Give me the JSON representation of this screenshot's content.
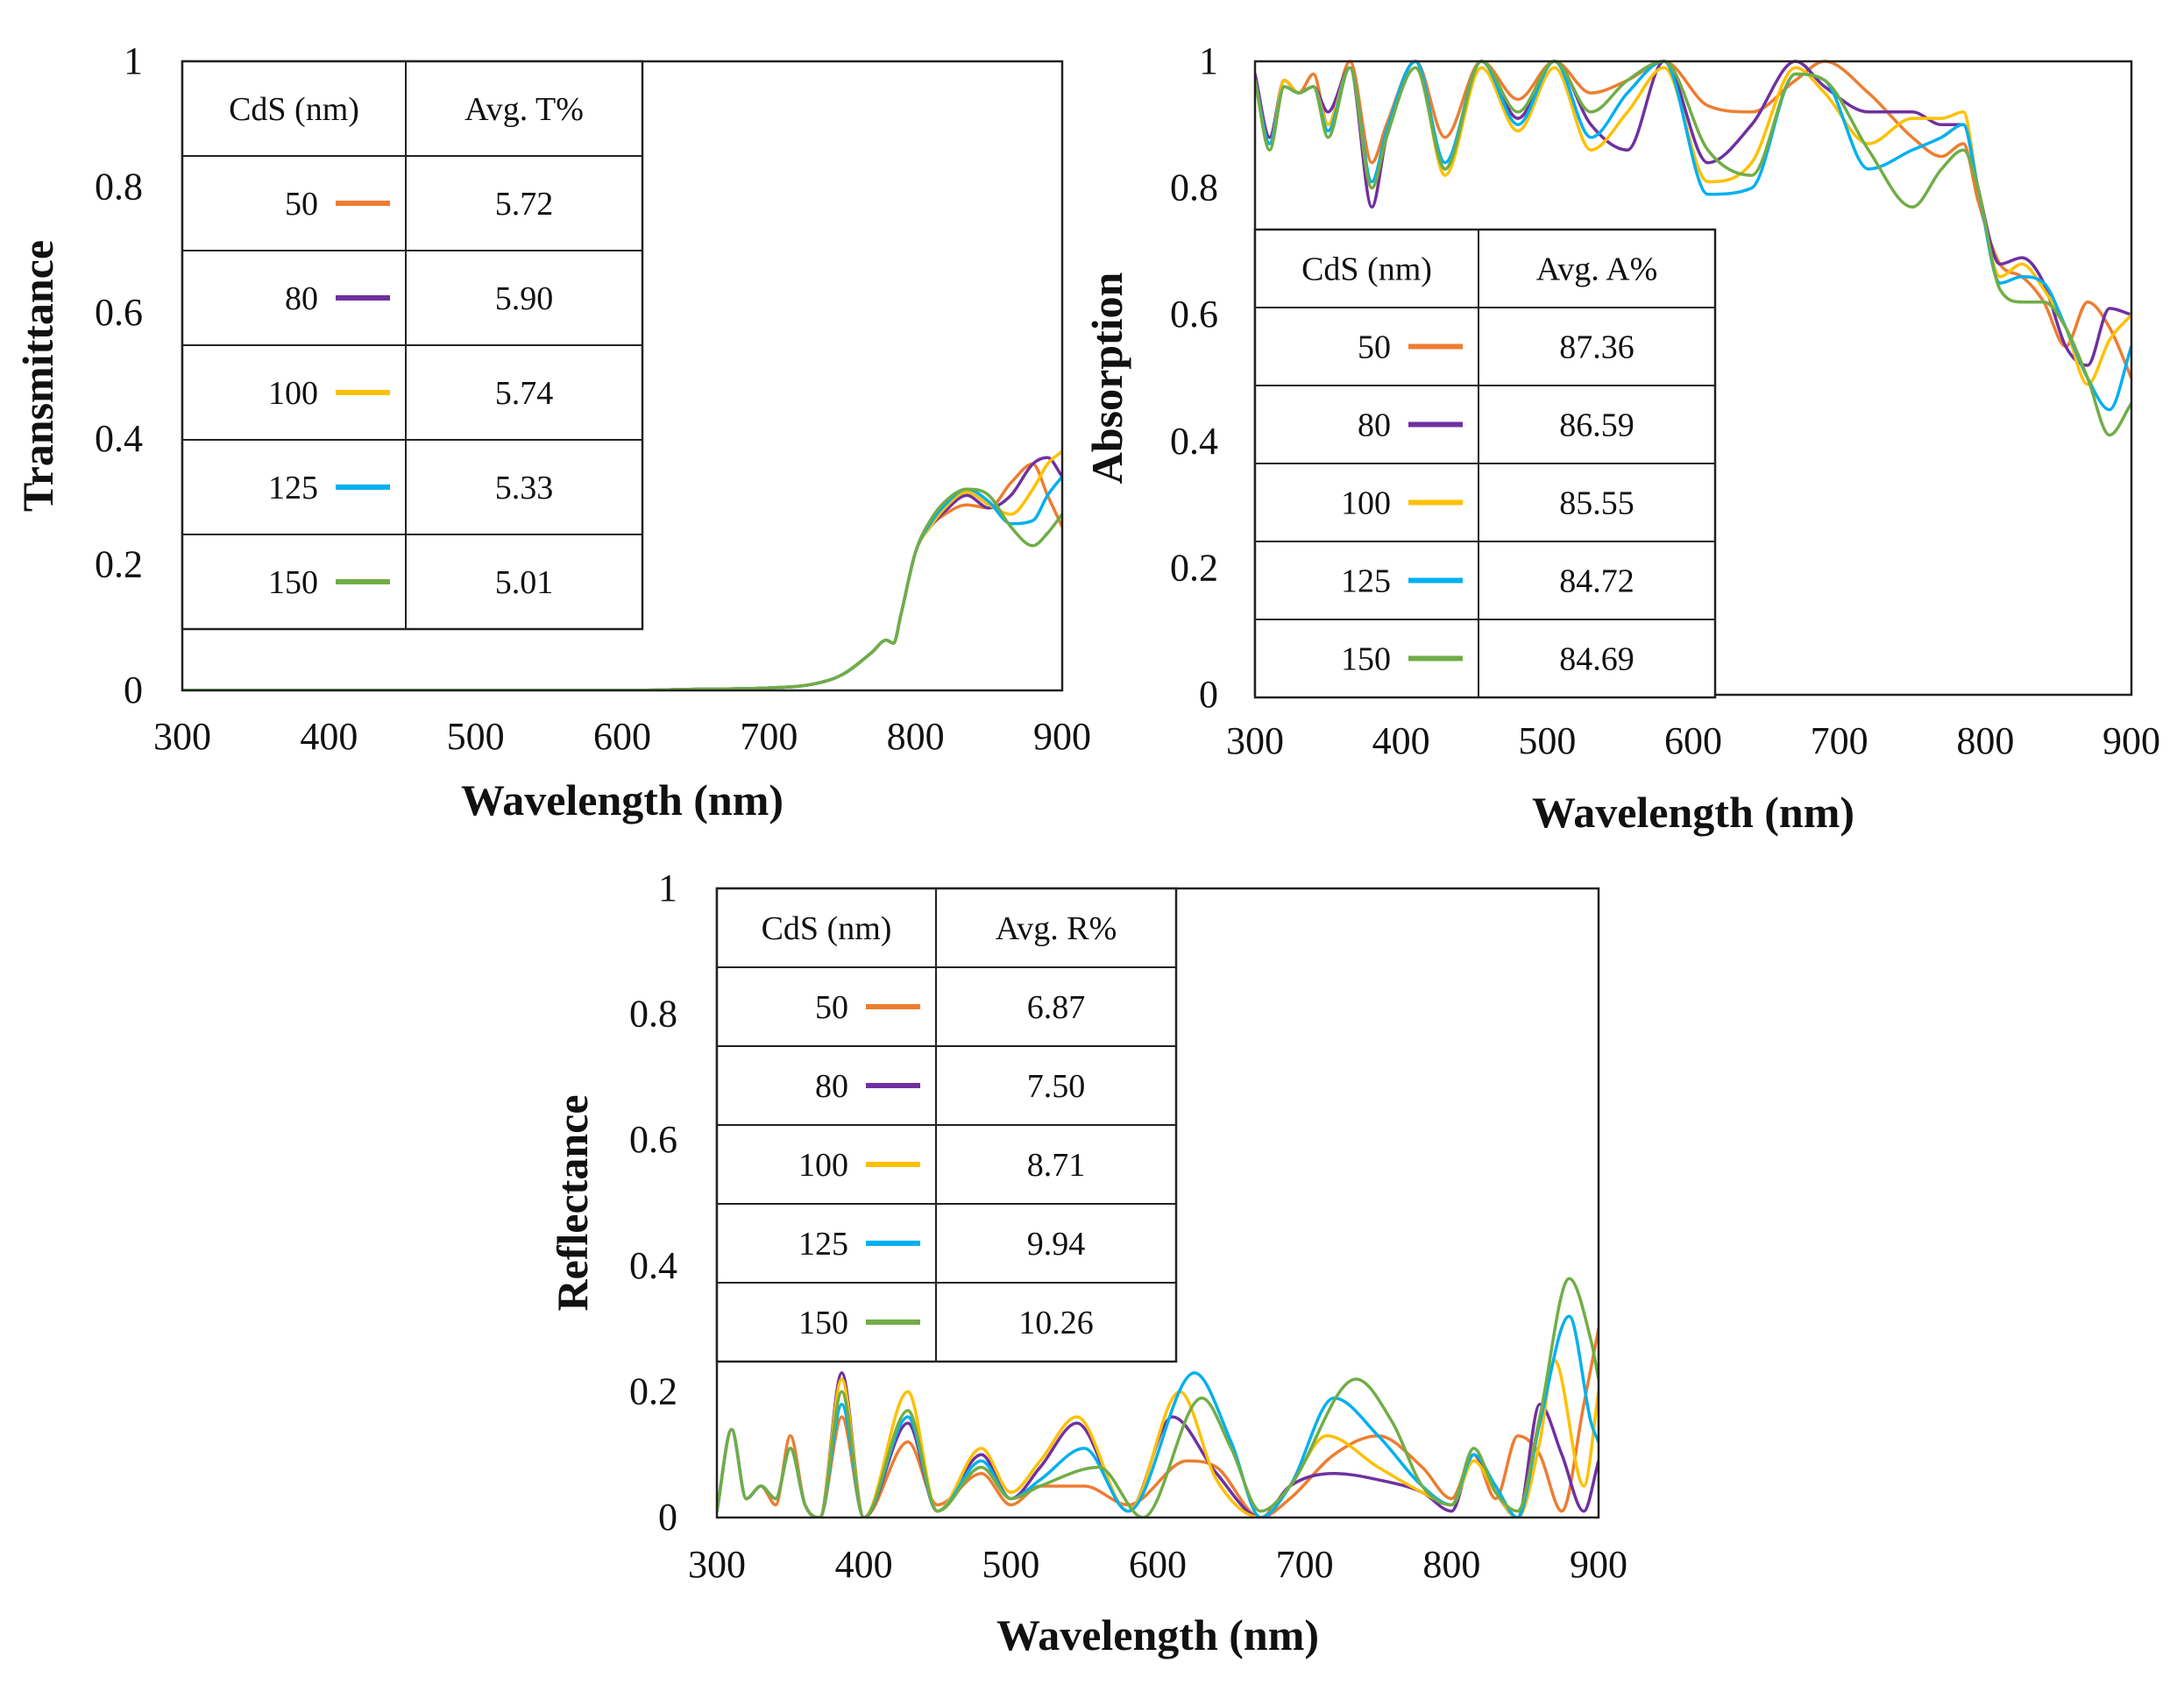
{
  "colors": {
    "50": "#ED7D31",
    "80": "#7030A0",
    "100": "#FFC000",
    "125": "#00B0F0",
    "150": "#70AD47"
  },
  "chart_data": [
    {
      "id": "transmittance",
      "type": "line",
      "xlabel": "Wavelength (nm)",
      "ylabel": "Transmittance",
      "xlim": [
        300,
        900
      ],
      "ylim": [
        0,
        1
      ],
      "xticks": [
        "300",
        "400",
        "500",
        "600",
        "700",
        "800",
        "900"
      ],
      "yticks": [
        "0",
        "0.2",
        "0.4",
        "0.6",
        "0.8",
        "1"
      ],
      "legend_table": {
        "headers": [
          "CdS (nm)",
          "Avg. T%"
        ],
        "rows": [
          {
            "label": "50",
            "value": "5.72"
          },
          {
            "label": "80",
            "value": "5.90"
          },
          {
            "label": "100",
            "value": "5.74"
          },
          {
            "label": "125",
            "value": "5.33"
          },
          {
            "label": "150",
            "value": "5.01"
          }
        ]
      },
      "series": [
        {
          "name": "50",
          "x": [
            300,
            600,
            650,
            700,
            730,
            750,
            770,
            780,
            785,
            790,
            800,
            810,
            820,
            835,
            850,
            865,
            880,
            890,
            900
          ],
          "y": [
            0,
            0,
            0.002,
            0.004,
            0.01,
            0.025,
            0.06,
            0.08,
            0.075,
            0.12,
            0.22,
            0.26,
            0.28,
            0.295,
            0.29,
            0.33,
            0.36,
            0.31,
            0.26
          ]
        },
        {
          "name": "80",
          "x": [
            300,
            600,
            650,
            700,
            730,
            750,
            770,
            780,
            785,
            790,
            800,
            810,
            820,
            835,
            850,
            865,
            880,
            890,
            900
          ],
          "y": [
            0,
            0,
            0.002,
            0.004,
            0.01,
            0.025,
            0.06,
            0.08,
            0.075,
            0.12,
            0.22,
            0.26,
            0.285,
            0.31,
            0.29,
            0.31,
            0.36,
            0.37,
            0.34
          ]
        },
        {
          "name": "100",
          "x": [
            300,
            600,
            650,
            700,
            730,
            750,
            770,
            780,
            785,
            790,
            800,
            810,
            820,
            835,
            850,
            865,
            880,
            890,
            900
          ],
          "y": [
            0,
            0,
            0.002,
            0.004,
            0.01,
            0.025,
            0.06,
            0.08,
            0.075,
            0.12,
            0.22,
            0.26,
            0.29,
            0.315,
            0.295,
            0.28,
            0.32,
            0.36,
            0.38
          ]
        },
        {
          "name": "125",
          "x": [
            300,
            600,
            650,
            700,
            730,
            750,
            770,
            780,
            785,
            790,
            800,
            810,
            820,
            835,
            850,
            865,
            880,
            890,
            900
          ],
          "y": [
            0,
            0,
            0.002,
            0.004,
            0.01,
            0.025,
            0.06,
            0.08,
            0.075,
            0.12,
            0.22,
            0.265,
            0.295,
            0.32,
            0.3,
            0.265,
            0.27,
            0.31,
            0.34
          ]
        },
        {
          "name": "150",
          "x": [
            300,
            600,
            650,
            700,
            730,
            750,
            770,
            780,
            785,
            790,
            800,
            810,
            820,
            835,
            850,
            865,
            880,
            890,
            900
          ],
          "y": [
            0,
            0,
            0.002,
            0.004,
            0.01,
            0.025,
            0.06,
            0.08,
            0.075,
            0.12,
            0.22,
            0.27,
            0.3,
            0.32,
            0.31,
            0.26,
            0.23,
            0.25,
            0.28
          ]
        }
      ]
    },
    {
      "id": "absorption",
      "type": "line",
      "xlabel": "Wavelength (nm)",
      "ylabel": "Absorption",
      "xlim": [
        300,
        900
      ],
      "ylim": [
        0,
        1
      ],
      "xticks": [
        "300",
        "400",
        "500",
        "600",
        "700",
        "800",
        "900"
      ],
      "yticks": [
        "0",
        "0.2",
        "0.4",
        "0.6",
        "0.8",
        "1"
      ],
      "legend_table": {
        "headers": [
          "CdS (nm)",
          "Avg. A%"
        ],
        "rows": [
          {
            "label": "50",
            "value": "87.36"
          },
          {
            "label": "80",
            "value": "86.59"
          },
          {
            "label": "100",
            "value": "85.55"
          },
          {
            "label": "125",
            "value": "84.72"
          },
          {
            "label": "150",
            "value": "84.69"
          }
        ]
      },
      "series": [
        {
          "name": "50",
          "x": [
            300,
            310,
            320,
            330,
            340,
            350,
            365,
            380,
            390,
            410,
            430,
            455,
            480,
            505,
            530,
            555,
            580,
            610,
            640,
            670,
            690,
            720,
            750,
            770,
            785,
            795,
            810,
            825,
            840,
            855,
            870,
            885,
            900
          ],
          "y": [
            0.98,
            0.88,
            0.97,
            0.95,
            0.98,
            0.9,
            1.0,
            0.84,
            0.9,
            1.0,
            0.88,
            1.0,
            0.94,
            1.0,
            0.95,
            0.97,
            1.0,
            0.93,
            0.92,
            0.97,
            1.0,
            0.95,
            0.88,
            0.85,
            0.87,
            0.78,
            0.68,
            0.66,
            0.62,
            0.55,
            0.62,
            0.58,
            0.5
          ]
        },
        {
          "name": "80",
          "x": [
            300,
            310,
            320,
            330,
            340,
            350,
            365,
            380,
            390,
            410,
            430,
            455,
            480,
            505,
            530,
            555,
            580,
            610,
            640,
            670,
            690,
            720,
            750,
            770,
            785,
            795,
            810,
            825,
            840,
            855,
            870,
            885,
            900
          ],
          "y": [
            0.98,
            0.88,
            0.97,
            0.95,
            0.96,
            0.92,
            0.99,
            0.77,
            0.88,
            1.0,
            0.83,
            1.0,
            0.91,
            1.0,
            0.9,
            0.86,
            1.0,
            0.84,
            0.9,
            1.0,
            0.96,
            0.92,
            0.92,
            0.9,
            0.9,
            0.8,
            0.68,
            0.69,
            0.65,
            0.55,
            0.52,
            0.61,
            0.6
          ]
        },
        {
          "name": "100",
          "x": [
            300,
            310,
            320,
            330,
            340,
            350,
            365,
            380,
            390,
            410,
            430,
            455,
            480,
            505,
            530,
            555,
            580,
            610,
            640,
            670,
            690,
            720,
            750,
            770,
            785,
            795,
            810,
            825,
            840,
            855,
            870,
            885,
            900
          ],
          "y": [
            0.97,
            0.87,
            0.97,
            0.95,
            0.96,
            0.9,
            0.99,
            0.8,
            0.88,
            1.0,
            0.82,
            0.99,
            0.89,
            0.99,
            0.86,
            0.92,
            0.99,
            0.81,
            0.84,
            0.99,
            0.95,
            0.87,
            0.91,
            0.91,
            0.92,
            0.8,
            0.66,
            0.68,
            0.64,
            0.58,
            0.49,
            0.56,
            0.6
          ]
        },
        {
          "name": "125",
          "x": [
            300,
            310,
            320,
            330,
            340,
            350,
            365,
            380,
            390,
            410,
            430,
            455,
            480,
            505,
            530,
            555,
            580,
            610,
            640,
            670,
            690,
            720,
            750,
            770,
            785,
            795,
            810,
            825,
            840,
            855,
            870,
            885,
            900
          ],
          "y": [
            0.97,
            0.87,
            0.96,
            0.95,
            0.96,
            0.89,
            0.99,
            0.81,
            0.89,
            1.0,
            0.84,
            1.0,
            0.9,
            1.0,
            0.88,
            0.95,
            1.0,
            0.79,
            0.8,
            0.98,
            0.97,
            0.83,
            0.86,
            0.88,
            0.9,
            0.8,
            0.65,
            0.66,
            0.65,
            0.58,
            0.5,
            0.45,
            0.55
          ]
        },
        {
          "name": "150",
          "x": [
            300,
            310,
            320,
            330,
            340,
            350,
            365,
            380,
            390,
            410,
            430,
            455,
            480,
            505,
            530,
            555,
            580,
            610,
            640,
            670,
            690,
            720,
            750,
            770,
            785,
            795,
            810,
            825,
            840,
            855,
            870,
            885,
            900
          ],
          "y": [
            0.97,
            0.86,
            0.96,
            0.95,
            0.96,
            0.88,
            0.99,
            0.8,
            0.88,
            0.99,
            0.83,
            1.0,
            0.92,
            1.0,
            0.92,
            0.97,
            1.0,
            0.86,
            0.82,
            0.98,
            0.97,
            0.86,
            0.77,
            0.83,
            0.86,
            0.8,
            0.64,
            0.62,
            0.62,
            0.58,
            0.5,
            0.41,
            0.46
          ]
        }
      ]
    },
    {
      "id": "reflectance",
      "type": "line",
      "xlabel": "Wavelength (nm)",
      "ylabel": "Reflectance",
      "xlim": [
        300,
        900
      ],
      "ylim": [
        0,
        1
      ],
      "xticks": [
        "300",
        "400",
        "500",
        "600",
        "700",
        "800",
        "900"
      ],
      "yticks": [
        "0",
        "0.2",
        "0.4",
        "0.6",
        "0.8",
        "1"
      ],
      "legend_table": {
        "headers": [
          "CdS (nm)",
          "Avg. R%"
        ],
        "rows": [
          {
            "label": "50",
            "value": "6.87"
          },
          {
            "label": "80",
            "value": "7.50"
          },
          {
            "label": "100",
            "value": "8.71"
          },
          {
            "label": "125",
            "value": "9.94"
          },
          {
            "label": "150",
            "value": "10.26"
          }
        ]
      },
      "series": [
        {
          "name": "50",
          "x": [
            300,
            310,
            320,
            330,
            340,
            350,
            360,
            370,
            385,
            400,
            430,
            450,
            480,
            500,
            520,
            550,
            580,
            620,
            640,
            670,
            690,
            720,
            750,
            780,
            800,
            815,
            830,
            845,
            860,
            875,
            890,
            900
          ],
          "y": [
            0.01,
            0.14,
            0.03,
            0.05,
            0.02,
            0.13,
            0.02,
            0.0,
            0.16,
            0.0,
            0.12,
            0.02,
            0.07,
            0.02,
            0.05,
            0.05,
            0.02,
            0.09,
            0.08,
            0.0,
            0.03,
            0.1,
            0.13,
            0.08,
            0.03,
            0.1,
            0.03,
            0.13,
            0.1,
            0.01,
            0.18,
            0.3
          ]
        },
        {
          "name": "80",
          "x": [
            300,
            310,
            320,
            330,
            340,
            350,
            360,
            370,
            385,
            400,
            430,
            450,
            480,
            500,
            520,
            545,
            580,
            610,
            640,
            670,
            690,
            720,
            750,
            780,
            800,
            815,
            830,
            845,
            860,
            875,
            890,
            900
          ],
          "y": [
            0.01,
            0.14,
            0.03,
            0.05,
            0.03,
            0.11,
            0.02,
            0.0,
            0.23,
            0.0,
            0.15,
            0.01,
            0.1,
            0.03,
            0.08,
            0.15,
            0.01,
            0.16,
            0.07,
            0.0,
            0.05,
            0.07,
            0.06,
            0.04,
            0.01,
            0.1,
            0.04,
            0.0,
            0.18,
            0.1,
            0.01,
            0.09
          ]
        },
        {
          "name": "100",
          "x": [
            300,
            310,
            320,
            330,
            340,
            350,
            360,
            370,
            385,
            400,
            430,
            450,
            480,
            500,
            520,
            545,
            580,
            615,
            640,
            670,
            690,
            715,
            750,
            780,
            800,
            815,
            830,
            845,
            860,
            870,
            890,
            900
          ],
          "y": [
            0.01,
            0.14,
            0.03,
            0.05,
            0.03,
            0.11,
            0.02,
            0.0,
            0.22,
            0.0,
            0.2,
            0.01,
            0.11,
            0.04,
            0.09,
            0.16,
            0.01,
            0.2,
            0.06,
            0.0,
            0.05,
            0.13,
            0.08,
            0.04,
            0.02,
            0.09,
            0.04,
            0.0,
            0.12,
            0.25,
            0.05,
            0.2
          ]
        },
        {
          "name": "125",
          "x": [
            300,
            310,
            320,
            330,
            340,
            350,
            360,
            370,
            385,
            400,
            430,
            450,
            480,
            500,
            520,
            550,
            580,
            625,
            650,
            670,
            690,
            720,
            750,
            780,
            800,
            815,
            830,
            845,
            860,
            880,
            895,
            900
          ],
          "y": [
            0.01,
            0.14,
            0.03,
            0.05,
            0.03,
            0.11,
            0.02,
            0.0,
            0.18,
            0.0,
            0.16,
            0.01,
            0.09,
            0.03,
            0.06,
            0.11,
            0.01,
            0.23,
            0.12,
            0.0,
            0.05,
            0.19,
            0.13,
            0.05,
            0.02,
            0.1,
            0.05,
            0.0,
            0.15,
            0.32,
            0.15,
            0.12
          ]
        },
        {
          "name": "150",
          "x": [
            300,
            310,
            320,
            330,
            340,
            350,
            360,
            370,
            385,
            400,
            430,
            450,
            480,
            500,
            520,
            560,
            590,
            630,
            650,
            670,
            690,
            735,
            760,
            780,
            800,
            815,
            830,
            845,
            860,
            880,
            895,
            900
          ],
          "y": [
            0.01,
            0.14,
            0.03,
            0.05,
            0.03,
            0.11,
            0.02,
            0.0,
            0.2,
            0.0,
            0.17,
            0.01,
            0.08,
            0.03,
            0.05,
            0.08,
            0.0,
            0.19,
            0.11,
            0.01,
            0.05,
            0.22,
            0.15,
            0.05,
            0.02,
            0.11,
            0.04,
            0.01,
            0.16,
            0.38,
            0.28,
            0.22
          ]
        }
      ]
    }
  ]
}
